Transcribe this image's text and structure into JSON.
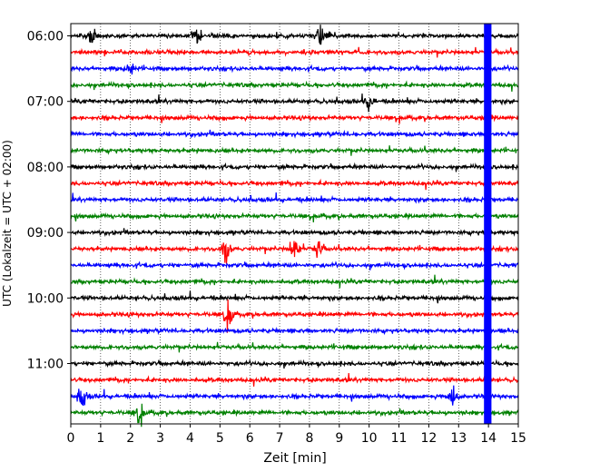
{
  "chart_data": {
    "type": "line",
    "title": "",
    "xlabel": "Zeit  [min]",
    "ylabel": "UTC (Lokalzeit = UTC + 02:00)",
    "xlim": [
      0,
      15
    ],
    "x_ticks": [
      "0",
      "1",
      "2",
      "3",
      "4",
      "5",
      "6",
      "7",
      "8",
      "9",
      "10",
      "11",
      "12",
      "13",
      "14",
      "15"
    ],
    "y_tick_labels": [
      "06:00",
      "07:00",
      "08:00",
      "09:00",
      "10:00",
      "11:00"
    ],
    "trace_interval_min": 15,
    "trace_count": 24,
    "start_time": "05:45",
    "grid": "vertical-dotted",
    "legend": "none",
    "series_colors": [
      "#000000",
      "#ff0000",
      "#0000ff",
      "#008000"
    ],
    "highlight_band": {
      "x_start": 13.85,
      "x_end": 14.1,
      "color": "#0000ff"
    },
    "events": [
      {
        "trace": 0,
        "x": 8.4,
        "amplitude": 3.0
      },
      {
        "trace": 0,
        "x": 0.7,
        "amplitude": 2.5
      },
      {
        "trace": 0,
        "x": 4.2,
        "amplitude": 2.2
      },
      {
        "trace": 2,
        "x": 2.0,
        "amplitude": 2.0
      },
      {
        "trace": 4,
        "x": 10.0,
        "amplitude": 2.5
      },
      {
        "trace": 13,
        "x": 5.2,
        "amplitude": 4.0
      },
      {
        "trace": 13,
        "x": 7.5,
        "amplitude": 4.0
      },
      {
        "trace": 13,
        "x": 8.3,
        "amplitude": 3.0
      },
      {
        "trace": 17,
        "x": 5.3,
        "amplitude": 3.5
      },
      {
        "trace": 22,
        "x": 0.4,
        "amplitude": 3.0
      },
      {
        "trace": 22,
        "x": 12.8,
        "amplitude": 3.5
      },
      {
        "trace": 23,
        "x": 2.3,
        "amplitude": 2.5
      }
    ]
  }
}
